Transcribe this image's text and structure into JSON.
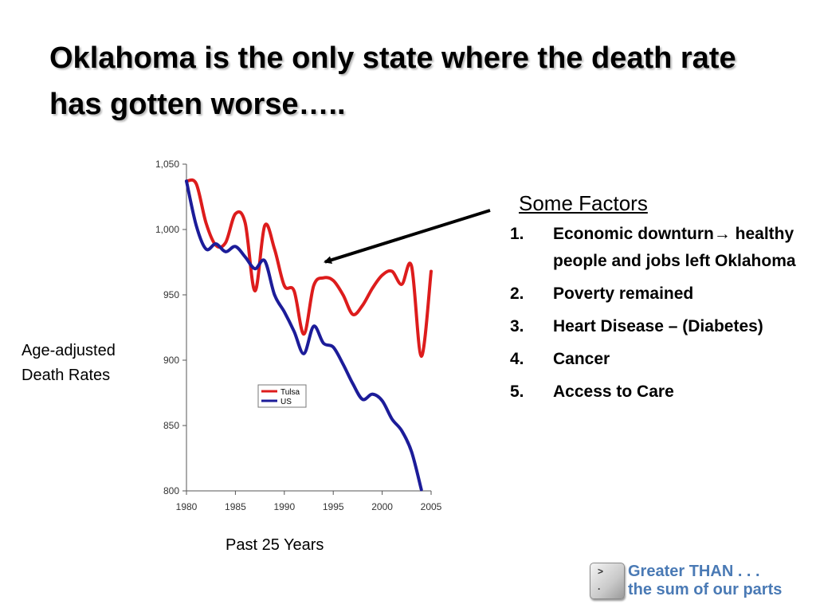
{
  "slide": {
    "title": "Oklahoma is the only state where the death rate has gotten worse…..",
    "ylabel_line1": "Age-adjusted",
    "ylabel_line2": "Death Rates",
    "xlabel": "Past 25 Years"
  },
  "factors": {
    "heading": "Some Factors",
    "items": [
      {
        "num": "1.",
        "text": "Economic downturn→ healthy people and jobs left Oklahoma"
      },
      {
        "num": "2.",
        "text": "Poverty remained"
      },
      {
        "num": "3.",
        "text": "Heart Disease – (Diabetes)"
      },
      {
        "num": "4.",
        "text": "Cancer"
      },
      {
        "num": "5.",
        "text": "Access to Care"
      }
    ]
  },
  "logo": {
    "line1": "Greater THAN . . .",
    "line2": "the sum of our parts",
    "key_symbol_top": ">",
    "key_symbol_bottom": "."
  },
  "chart_data": {
    "type": "line",
    "title": "",
    "xlabel": "Past 25 Years",
    "ylabel": "Age-adjusted Death Rates",
    "xlim": [
      1980,
      2005
    ],
    "ylim": [
      800,
      1050
    ],
    "xticks": [
      1980,
      1985,
      1990,
      1995,
      2000,
      2005
    ],
    "yticks": [
      800,
      850,
      900,
      950,
      1000,
      1050
    ],
    "ytick_labels": [
      "800",
      "850",
      "900",
      "950",
      "1,000",
      "1,050"
    ],
    "grid": false,
    "legend_position": "center",
    "series": [
      {
        "name": "Tulsa",
        "color": "#dd1c1c",
        "points": [
          [
            1980,
            1037
          ],
          [
            1981,
            1035
          ],
          [
            1982,
            1005
          ],
          [
            1983,
            988
          ],
          [
            1984,
            990
          ],
          [
            1985,
            1012
          ],
          [
            1986,
            1005
          ],
          [
            1987,
            953
          ],
          [
            1988,
            1003
          ],
          [
            1989,
            985
          ],
          [
            1990,
            957
          ],
          [
            1991,
            953
          ],
          [
            1992,
            920
          ],
          [
            1993,
            957
          ],
          [
            1994,
            963
          ],
          [
            1995,
            961
          ],
          [
            1996,
            950
          ],
          [
            1997,
            935
          ],
          [
            1998,
            942
          ],
          [
            1999,
            955
          ],
          [
            2000,
            965
          ],
          [
            2001,
            968
          ],
          [
            2002,
            958
          ],
          [
            2003,
            972
          ],
          [
            2004,
            903
          ],
          [
            2005,
            968
          ]
        ]
      },
      {
        "name": "US",
        "color": "#1c1c99",
        "points": [
          [
            1980,
            1037
          ],
          [
            1981,
            1003
          ],
          [
            1982,
            985
          ],
          [
            1983,
            989
          ],
          [
            1984,
            983
          ],
          [
            1985,
            987
          ],
          [
            1986,
            979
          ],
          [
            1987,
            970
          ],
          [
            1988,
            976
          ],
          [
            1989,
            950
          ],
          [
            1990,
            937
          ],
          [
            1991,
            922
          ],
          [
            1992,
            905
          ],
          [
            1993,
            926
          ],
          [
            1994,
            913
          ],
          [
            1995,
            910
          ],
          [
            1996,
            897
          ],
          [
            1997,
            882
          ],
          [
            1998,
            870
          ],
          [
            1999,
            874
          ],
          [
            2000,
            869
          ],
          [
            2001,
            855
          ],
          [
            2002,
            846
          ],
          [
            2003,
            830
          ],
          [
            2004,
            801
          ]
        ]
      }
    ],
    "annotation": {
      "type": "arrow",
      "points_to": [
        1994,
        963
      ]
    }
  }
}
